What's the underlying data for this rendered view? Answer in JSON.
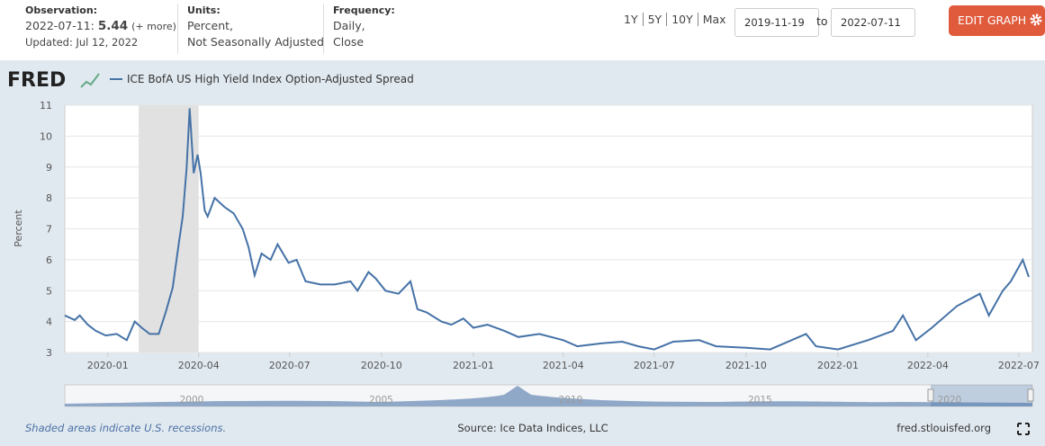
{
  "header": {
    "observation": {
      "label": "Observation:",
      "date": "2022-07-11:",
      "value": "5.44",
      "more": "(+ more)",
      "updated": "Updated: Jul 12, 2022"
    },
    "units": {
      "label": "Units:",
      "lines": [
        "Percent,",
        "Not Seasonally Adjusted"
      ]
    },
    "frequency": {
      "label": "Frequency:",
      "lines": [
        "Daily,",
        "Close"
      ]
    },
    "range_buttons": [
      "1Y",
      "5Y",
      "10Y",
      "Max"
    ],
    "date_from": "2019-11-19",
    "to": "to",
    "date_to": "2022-07-11",
    "edit": "EDIT GRAPH"
  },
  "logo": "FRED",
  "chart_data": {
    "type": "line",
    "y_label": "Percent",
    "x": [
      "2019-11-19",
      "2019-11-29",
      "2019-12-04",
      "2019-12-12",
      "2019-12-20",
      "2019-12-30",
      "2020-01-10",
      "2020-01-20",
      "2020-01-28",
      "2020-02-04",
      "2020-02-12",
      "2020-02-21",
      "2020-02-28",
      "2020-03-06",
      "2020-03-12",
      "2020-03-16",
      "2020-03-20",
      "2020-03-23",
      "2020-03-27",
      "2020-03-31",
      "2020-04-03",
      "2020-04-07",
      "2020-04-10",
      "2020-04-17",
      "2020-04-27",
      "2020-05-06",
      "2020-05-15",
      "2020-05-21",
      "2020-05-27",
      "2020-06-03",
      "2020-06-12",
      "2020-06-19",
      "2020-06-30",
      "2020-07-08",
      "2020-07-17",
      "2020-08-01",
      "2020-08-15",
      "2020-08-31",
      "2020-09-07",
      "2020-09-18",
      "2020-09-25",
      "2020-10-05",
      "2020-10-18",
      "2020-10-30",
      "2020-11-06",
      "2020-11-15",
      "2020-11-30",
      "2020-12-10",
      "2020-12-22",
      "2021-01-01",
      "2021-01-15",
      "2021-02-01",
      "2021-02-15",
      "2021-03-08",
      "2021-04-01",
      "2021-04-15",
      "2021-05-10",
      "2021-05-30",
      "2021-06-15",
      "2021-07-01",
      "2021-07-20",
      "2021-08-15",
      "2021-09-01",
      "2021-10-01",
      "2021-10-25",
      "2021-11-30",
      "2021-12-10",
      "2022-01-01",
      "2022-01-31",
      "2022-02-25",
      "2022-03-07",
      "2022-03-20",
      "2022-04-05",
      "2022-04-30",
      "2022-05-23",
      "2022-06-01",
      "2022-06-15",
      "2022-06-23",
      "2022-07-05",
      "2022-07-11"
    ],
    "series": [
      {
        "name": "ICE BofA US High Yield Index Option-Adjusted Spread",
        "color": "#4572a7",
        "values": [
          4.2,
          4.05,
          4.2,
          3.9,
          3.7,
          3.55,
          3.6,
          3.4,
          4.0,
          3.8,
          3.6,
          3.6,
          4.3,
          5.1,
          6.5,
          7.4,
          9.0,
          10.9,
          8.8,
          9.4,
          8.8,
          7.6,
          7.4,
          8.0,
          7.7,
          7.5,
          7.0,
          6.4,
          5.5,
          6.2,
          6.0,
          6.5,
          5.9,
          6.0,
          5.3,
          5.2,
          5.2,
          5.3,
          5.0,
          5.6,
          5.4,
          5.0,
          4.9,
          5.3,
          4.4,
          4.3,
          4.0,
          3.9,
          4.1,
          3.8,
          3.9,
          3.7,
          3.5,
          3.6,
          3.4,
          3.2,
          3.3,
          3.35,
          3.2,
          3.1,
          3.35,
          3.4,
          3.2,
          3.15,
          3.1,
          3.6,
          3.2,
          3.1,
          3.4,
          3.7,
          4.2,
          3.4,
          3.8,
          4.5,
          4.9,
          4.2,
          5.0,
          5.3,
          6.0,
          5.44
        ]
      }
    ],
    "recessions": [
      [
        "2020-02-01",
        "2020-04-01"
      ]
    ],
    "xlim": [
      "2019-11-19",
      "2022-07-11"
    ],
    "xticks": [
      "2020-01",
      "2020-04",
      "2020-07",
      "2020-10",
      "2021-01",
      "2021-04",
      "2021-07",
      "2021-10",
      "2022-01",
      "2022-04",
      "2022-07"
    ],
    "ylim": [
      3,
      11
    ],
    "yticks": [
      3,
      4,
      5,
      6,
      7,
      8,
      9,
      10,
      11
    ],
    "grid": true
  },
  "navigator": {
    "labels": [
      "2000",
      "2005",
      "2010",
      "2015",
      "2020"
    ]
  },
  "footer": {
    "note": "Shaded areas indicate U.S. recessions.",
    "source": "Source: Ice Data Indices, LLC",
    "site": "fred.stlouisfed.org"
  }
}
